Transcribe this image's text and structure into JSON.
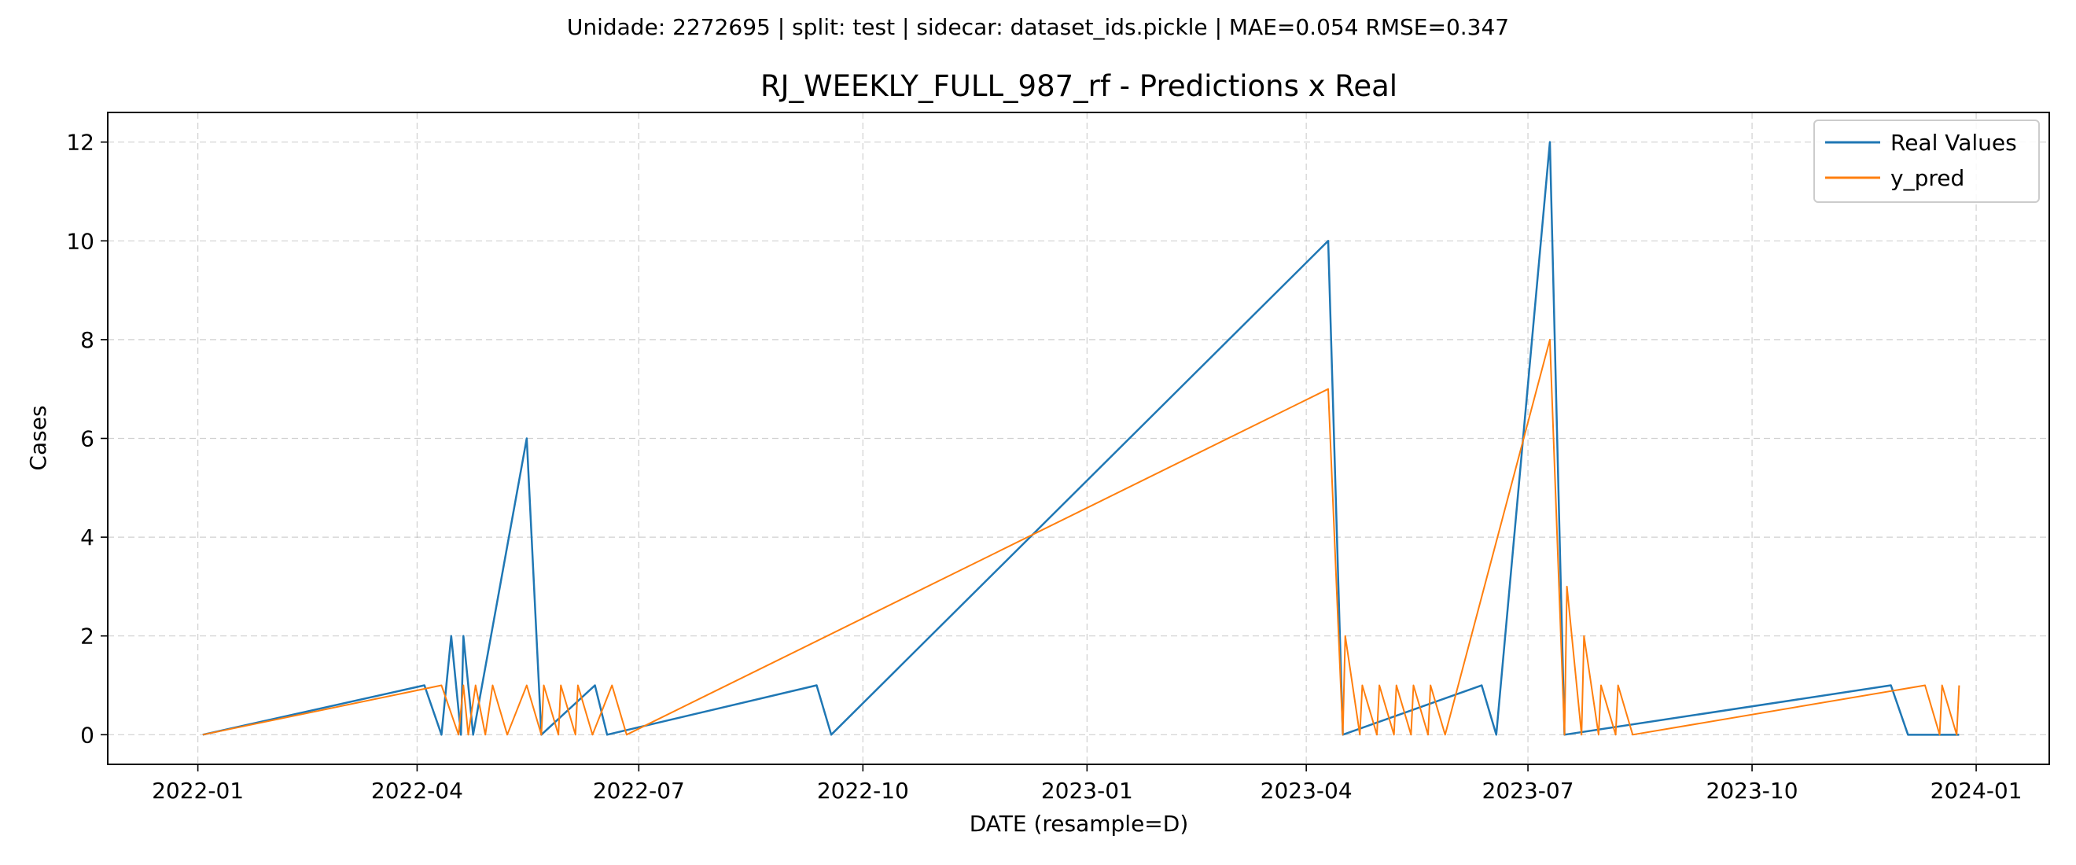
{
  "suptitle": "Unidade: 2272695 | split: test | sidecar: dataset_ids.pickle | MAE=0.054  RMSE=0.347",
  "chart_data": {
    "type": "line",
    "title": "RJ_WEEKLY_FULL_987_rf - Predictions x Real",
    "xlabel": "DATE (resample=D)",
    "ylabel": "Cases",
    "x_range": [
      "2021-11-25",
      "2024-01-31"
    ],
    "ylim": [
      -0.6,
      12.6
    ],
    "x_ticks": [
      "2022-01",
      "2022-04",
      "2022-07",
      "2022-10",
      "2023-01",
      "2023-04",
      "2023-07",
      "2023-10",
      "2024-01"
    ],
    "y_ticks": [
      0,
      2,
      4,
      6,
      8,
      10,
      12
    ],
    "grid": true,
    "legend_position": "upper right",
    "x_start": "2022-01-03",
    "x_end": "2023-12-25",
    "series": [
      {
        "name": "Real Values",
        "color": "#1f77b4",
        "line_width": 2.5,
        "points": [
          [
            "2022-04-04",
            1
          ],
          [
            "2022-04-11",
            0
          ],
          [
            "2022-04-15",
            2
          ],
          [
            "2022-04-19",
            0
          ],
          [
            "2022-04-20",
            2
          ],
          [
            "2022-04-24",
            0
          ],
          [
            "2022-05-16",
            6
          ],
          [
            "2022-05-22",
            0
          ],
          [
            "2022-06-13",
            1
          ],
          [
            "2022-06-18",
            0
          ],
          [
            "2022-09-12",
            1
          ],
          [
            "2022-09-18",
            0
          ],
          [
            "2023-04-10",
            10
          ],
          [
            "2023-04-16",
            0
          ],
          [
            "2023-06-12",
            1
          ],
          [
            "2023-06-18",
            0
          ],
          [
            "2023-07-10",
            12
          ],
          [
            "2023-07-16",
            0
          ],
          [
            "2023-11-27",
            1
          ],
          [
            "2023-12-04",
            0
          ]
        ]
      },
      {
        "name": "y_pred",
        "color": "#ff7f0e",
        "line_width": 2,
        "points": [
          [
            "2022-04-11",
            1
          ],
          [
            "2022-04-18",
            0
          ],
          [
            "2022-04-20",
            1
          ],
          [
            "2022-04-22",
            0
          ],
          [
            "2022-04-25",
            1
          ],
          [
            "2022-04-29",
            0
          ],
          [
            "2022-05-02",
            1
          ],
          [
            "2022-05-08",
            0
          ],
          [
            "2022-05-16",
            1
          ],
          [
            "2022-05-22",
            0
          ],
          [
            "2022-05-23",
            1
          ],
          [
            "2022-05-29",
            0
          ],
          [
            "2022-05-30",
            1
          ],
          [
            "2022-06-05",
            0
          ],
          [
            "2022-06-06",
            1
          ],
          [
            "2022-06-12",
            0
          ],
          [
            "2022-06-20",
            1
          ],
          [
            "2022-06-26",
            0
          ],
          [
            "2023-04-10",
            7
          ],
          [
            "2023-04-16",
            0
          ],
          [
            "2023-04-17",
            2
          ],
          [
            "2023-04-23",
            0
          ],
          [
            "2023-04-24",
            1
          ],
          [
            "2023-04-30",
            0
          ],
          [
            "2023-05-01",
            1
          ],
          [
            "2023-05-07",
            0
          ],
          [
            "2023-05-08",
            1
          ],
          [
            "2023-05-14",
            0
          ],
          [
            "2023-05-15",
            1
          ],
          [
            "2023-05-21",
            0
          ],
          [
            "2023-05-22",
            1
          ],
          [
            "2023-05-28",
            0
          ],
          [
            "2023-07-10",
            8
          ],
          [
            "2023-07-16",
            0
          ],
          [
            "2023-07-17",
            3
          ],
          [
            "2023-07-23",
            0
          ],
          [
            "2023-07-24",
            2
          ],
          [
            "2023-07-30",
            0
          ],
          [
            "2023-07-31",
            1
          ],
          [
            "2023-08-06",
            0
          ],
          [
            "2023-08-07",
            1
          ],
          [
            "2023-08-13",
            0
          ],
          [
            "2023-12-11",
            1
          ],
          [
            "2023-12-17",
            0
          ],
          [
            "2023-12-18",
            1
          ],
          [
            "2023-12-24",
            0
          ],
          [
            "2023-12-25",
            1
          ]
        ]
      }
    ]
  }
}
